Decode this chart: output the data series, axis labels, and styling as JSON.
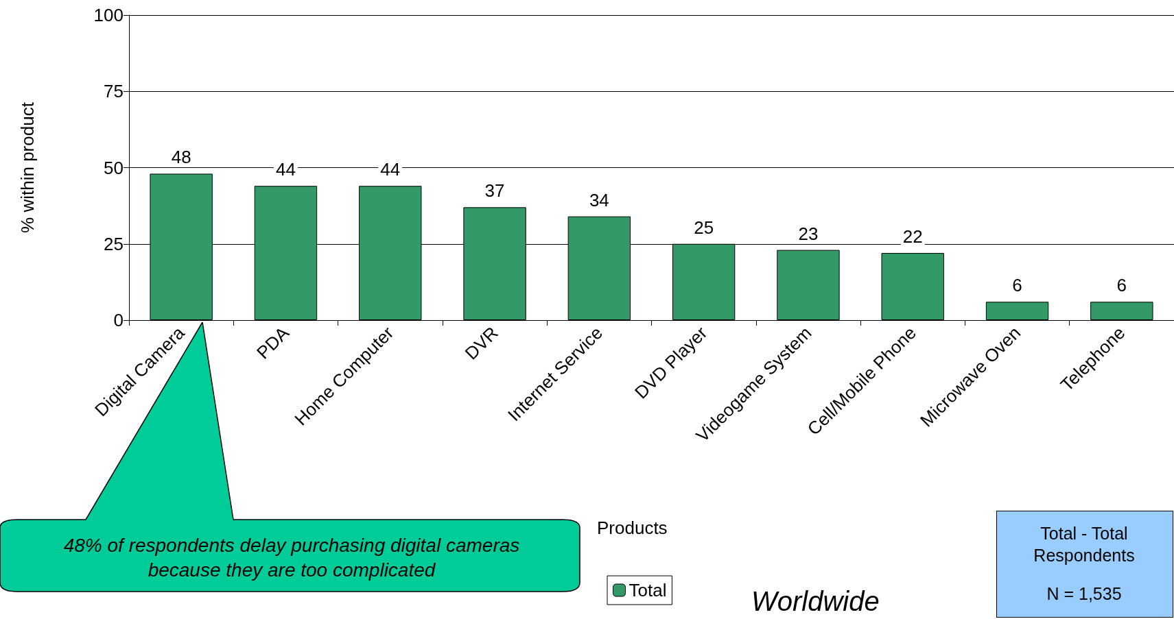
{
  "chart_data": {
    "type": "bar",
    "xlabel": "Products",
    "ylabel": "% within product",
    "categories": [
      "Digital Camera",
      "PDA",
      "Home Computer",
      "DVR",
      "Internet Service",
      "DVD Player",
      "Videogame System",
      "Cell/Mobile Phone",
      "Microwave Oven",
      "Telephone"
    ],
    "series": [
      {
        "name": "Total",
        "color": "#339966",
        "values": [
          48,
          44,
          44,
          37,
          34,
          25,
          23,
          22,
          6,
          6
        ]
      }
    ],
    "ylim": [
      0,
      100
    ],
    "yticks": [
      0,
      25,
      50,
      75,
      100
    ],
    "grid": "y",
    "legend": "bottom",
    "data_labels": true,
    "annotations": [
      "48% of respondents delay purchasing digital cameras because they are too complicated",
      "Worldwide",
      "Total - Total Respondents",
      "N = 1,535"
    ]
  }
}
